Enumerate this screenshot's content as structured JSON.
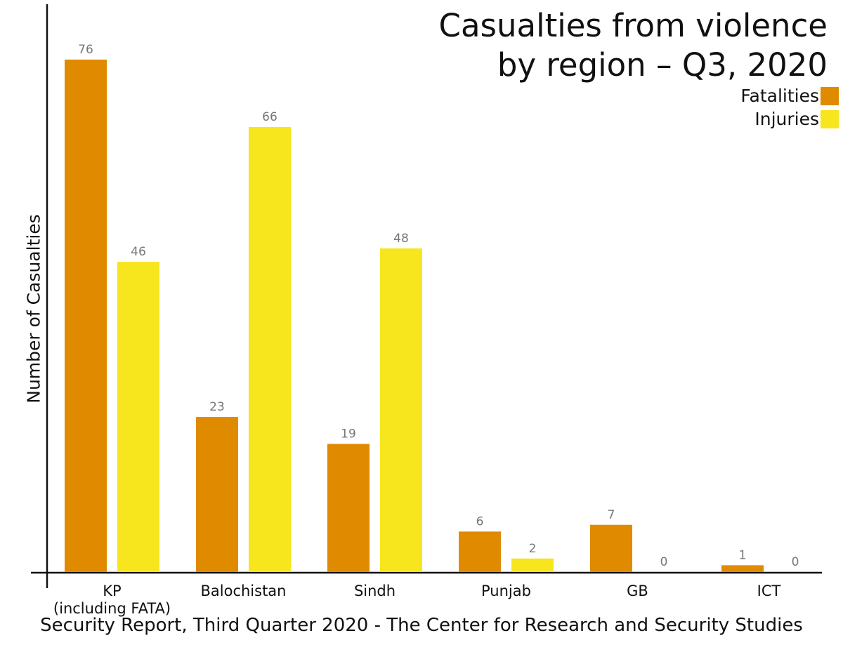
{
  "chart_data": {
    "type": "bar",
    "title_lines": [
      "Casualties from violence",
      "by region – Q3, 2020"
    ],
    "ylabel": "Number of Casualties",
    "footer": "Security Report, Third Quarter 2020 - The Center for Research and Security Studies",
    "categories": [
      [
        "KP",
        "(including FATA)"
      ],
      [
        "Balochistan"
      ],
      [
        "Sindh"
      ],
      [
        "Punjab"
      ],
      [
        "GB"
      ],
      [
        "ICT"
      ]
    ],
    "series": [
      {
        "name": "Fatalities",
        "color": "#E08A00",
        "values": [
          76,
          23,
          19,
          6,
          7,
          1
        ]
      },
      {
        "name": "Injuries",
        "color": "#F7E51E",
        "values": [
          46,
          66,
          48,
          2,
          0,
          0
        ]
      }
    ],
    "ylim": [
      0,
      80
    ],
    "legend_position": "top-right",
    "grid": false,
    "label_color": "#777777"
  }
}
